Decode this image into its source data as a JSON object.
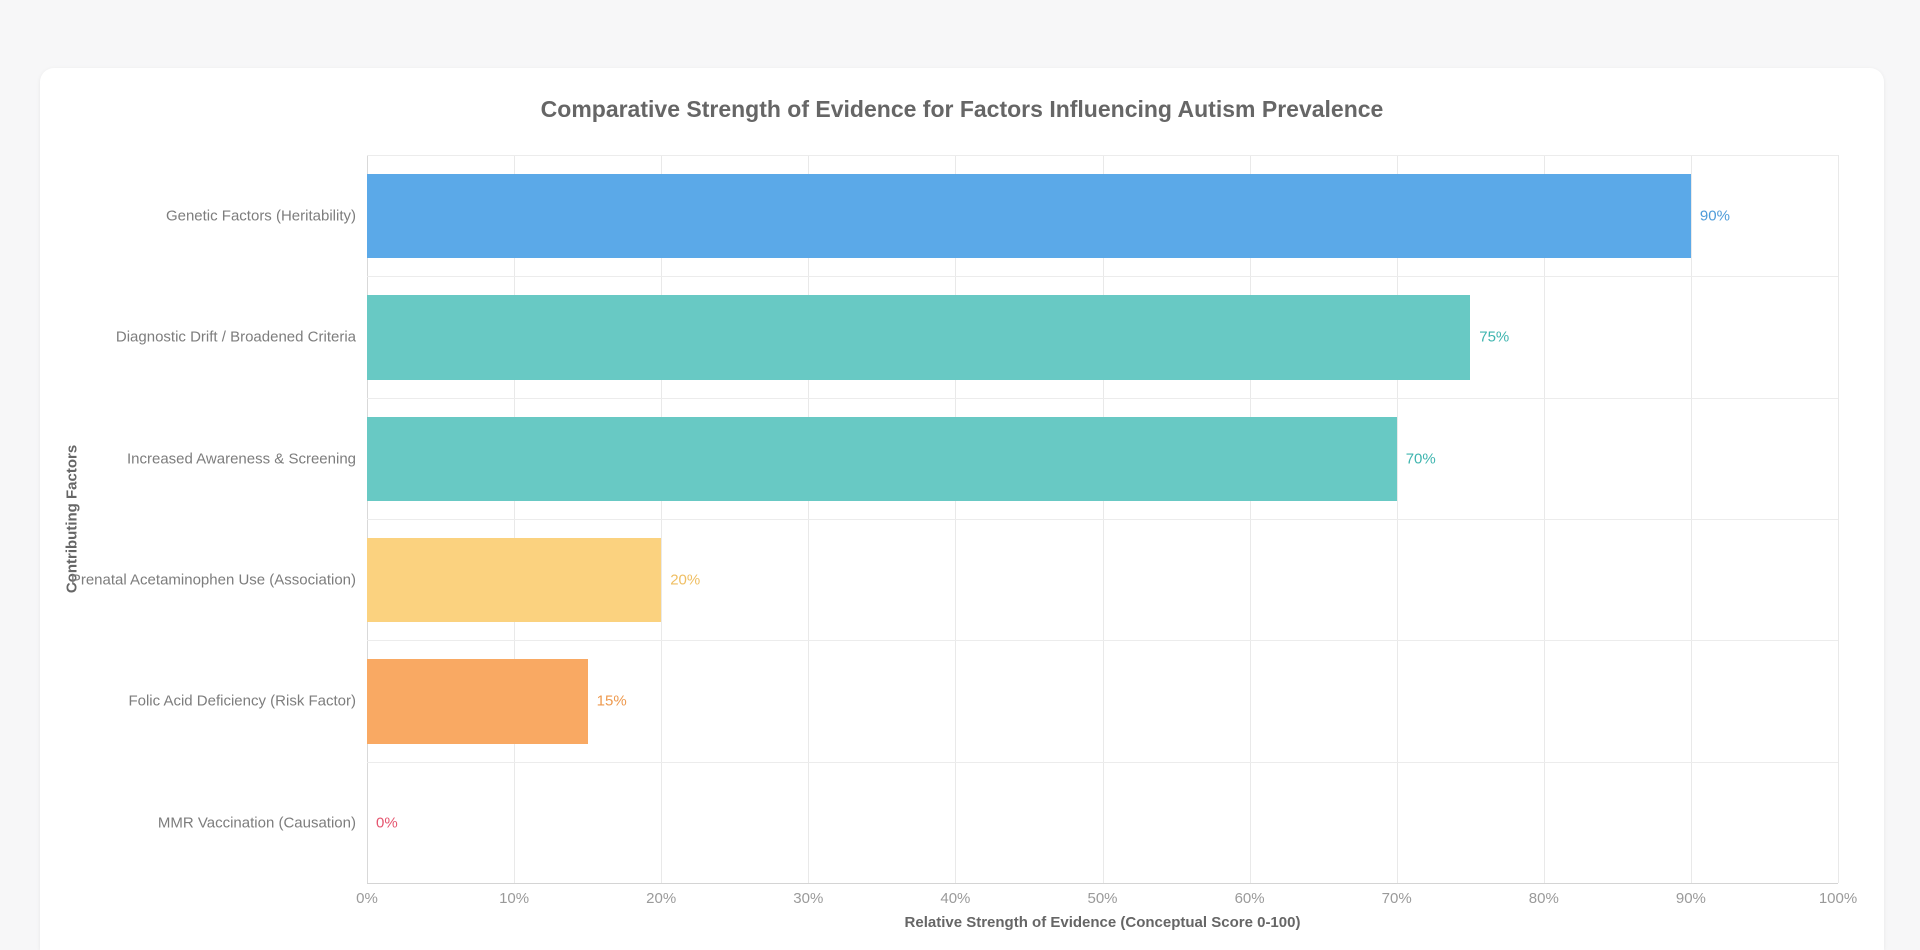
{
  "page": {
    "background_color": "#f7f7f8",
    "card_background_color": "#ffffff"
  },
  "chart_data": {
    "type": "bar",
    "orientation": "horizontal",
    "title": "Comparative Strength of Evidence for Factors Influencing Autism Prevalence",
    "xlabel": "Relative Strength of Evidence (Conceptual Score 0-100)",
    "ylabel": "Contributing Factors",
    "xlim": [
      0,
      100
    ],
    "x_ticks": [
      "0%",
      "10%",
      "20%",
      "30%",
      "40%",
      "50%",
      "60%",
      "70%",
      "80%",
      "90%",
      "100%"
    ],
    "grid": true,
    "legend": false,
    "categories": [
      "Genetic Factors (Heritability)",
      "Diagnostic Drift / Broadened Criteria",
      "Increased Awareness & Screening",
      "Prenatal Acetaminophen Use (Association)",
      "Folic Acid Deficiency (Risk Factor)",
      "MMR Vaccination (Causation)"
    ],
    "values": [
      90,
      75,
      70,
      20,
      15,
      0
    ],
    "value_labels": [
      "90%",
      "75%",
      "70%",
      "20%",
      "15%",
      "0%"
    ],
    "bar_colors": [
      "#5BA9E8",
      "#68C9C4",
      "#68C9C4",
      "#FBD27F",
      "#F9A963",
      "#E5556F"
    ],
    "value_label_colors": [
      "#4E9CD9",
      "#3FB5AF",
      "#3FB5AF",
      "#EFBE62",
      "#EE9A4F",
      "#E5556F"
    ],
    "colors": {
      "title": "#666666",
      "axis_title": "#666666",
      "tick_label": "#9a9a9a",
      "category_label": "#7d7d7d",
      "gridline": "#e9e9e9",
      "axis_line": "#d4d4d4"
    }
  }
}
